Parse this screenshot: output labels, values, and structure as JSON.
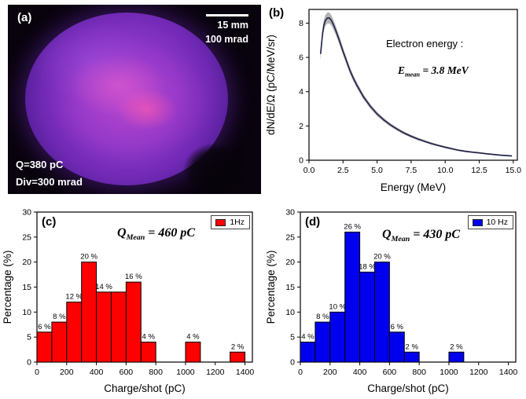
{
  "panels": {
    "a": {
      "label": "(a)",
      "scale_length_label": "15 mm",
      "scale_div_label": "100 mrad",
      "charge_label": "Q=380 pC",
      "divergence_label": "Div=300 mrad"
    },
    "b": {
      "label": "(b)",
      "annotation_title": "Electron energy :",
      "emean_symbol": "E",
      "emean_subscript": "mean",
      "emean_value": " = 3.8 MeV"
    },
    "c": {
      "label": "(c)",
      "legend_label": "1Hz",
      "qmean_symbol": "Q",
      "qmean_subscript": "Mean",
      "qmean_value": " = 460 pC"
    },
    "d": {
      "label": "(d)",
      "legend_label": "10 Hz",
      "qmean_symbol": "Q",
      "qmean_subscript": "Mean",
      "qmean_value": " = 430 pC"
    }
  },
  "chart_data": [
    {
      "type": "line",
      "panel": "b",
      "title": "",
      "xlabel": "Energy (MeV)",
      "ylabel": "dN/dE/Ω (pC/MeV/sr)",
      "xlim": [
        0,
        15.3
      ],
      "ylim": [
        0,
        8.8
      ],
      "xticks": [
        0,
        2.5,
        5,
        7.5,
        10,
        12.5,
        15
      ],
      "xtick_labels": [
        "0.0",
        "2.5",
        "5.0",
        "7.5",
        "10.0",
        "12.5",
        "15.0"
      ],
      "yticks": [
        0,
        2,
        4,
        6,
        8
      ],
      "ytick_labels": [
        "0",
        "2",
        "4",
        "6",
        "8"
      ],
      "line_color": "#20204a",
      "band_color": "#9a9a9a",
      "mean_energy_MeV": 3.8,
      "x": [
        0.85,
        1.0,
        1.1,
        1.2,
        1.35,
        1.5,
        1.65,
        1.8,
        2.0,
        2.25,
        2.5,
        2.75,
        3.0,
        3.25,
        3.5,
        4.0,
        4.5,
        5.0,
        5.5,
        6.0,
        6.5,
        7.0,
        7.5,
        8.0,
        8.5,
        9.0,
        9.5,
        10.0,
        10.5,
        11.0,
        11.5,
        12.0,
        12.5,
        13.0,
        13.5,
        14.0,
        14.5,
        14.9
      ],
      "y": [
        6.2,
        7.4,
        7.9,
        8.15,
        8.3,
        8.3,
        8.15,
        7.9,
        7.5,
        6.95,
        6.35,
        5.8,
        5.25,
        4.8,
        4.4,
        3.7,
        3.15,
        2.7,
        2.35,
        2.05,
        1.8,
        1.58,
        1.4,
        1.24,
        1.1,
        0.97,
        0.86,
        0.76,
        0.67,
        0.58,
        0.52,
        0.47,
        0.43,
        0.38,
        0.34,
        0.3,
        0.27,
        0.25
      ],
      "yerr": [
        0.35,
        0.33,
        0.32,
        0.32,
        0.32,
        0.32,
        0.3,
        0.28,
        0.26,
        0.24,
        0.22,
        0.2,
        0.19,
        0.18,
        0.17,
        0.15,
        0.13,
        0.12,
        0.11,
        0.1,
        0.09,
        0.09,
        0.08,
        0.08,
        0.07,
        0.07,
        0.06,
        0.06,
        0.06,
        0.05,
        0.05,
        0.05,
        0.05,
        0.04,
        0.04,
        0.04,
        0.04,
        0.04
      ]
    },
    {
      "type": "bar",
      "panel": "c",
      "legend": "1Hz",
      "color": "#ff0000",
      "xlabel": "Charge/shot (pC)",
      "ylabel": "Percentage (%)",
      "xlim": [
        0,
        1450
      ],
      "ylim": [
        0,
        30
      ],
      "xticks": [
        0,
        200,
        400,
        600,
        800,
        1000,
        1200,
        1400
      ],
      "xtick_labels": [
        "0",
        "200",
        "400",
        "600",
        "800",
        "1000",
        "1200",
        "1400"
      ],
      "yticks": [
        0,
        5,
        10,
        15,
        20,
        25,
        30
      ],
      "ytick_labels": [
        "0",
        "5",
        "10",
        "15",
        "20",
        "25",
        "30"
      ],
      "bin_width": 100,
      "bins": [
        0,
        100,
        200,
        300,
        400,
        500,
        600,
        700,
        1000,
        1300
      ],
      "values": [
        6,
        8,
        12,
        20,
        14,
        14,
        16,
        4,
        4,
        2
      ],
      "bar_labels": [
        "6 %",
        "8 %",
        "12 %",
        "20 %",
        "14 %",
        "",
        "16 %",
        "4 %",
        "4 %",
        "2 %"
      ],
      "mean_charge_pC": 460
    },
    {
      "type": "bar",
      "panel": "d",
      "legend": "10 Hz",
      "color": "#0000ee",
      "xlabel": "Charge/shot (pC)",
      "ylabel": "Percentage (%)",
      "xlim": [
        0,
        1450
      ],
      "ylim": [
        0,
        30
      ],
      "xticks": [
        0,
        200,
        400,
        600,
        800,
        1000,
        1200,
        1400
      ],
      "xtick_labels": [
        "0",
        "200",
        "400",
        "600",
        "800",
        "1000",
        "1200",
        "1400"
      ],
      "yticks": [
        0,
        5,
        10,
        15,
        20,
        25,
        30
      ],
      "ytick_labels": [
        "0",
        "5",
        "10",
        "15",
        "20",
        "25",
        "30"
      ],
      "bin_width": 100,
      "bins": [
        0,
        100,
        200,
        300,
        400,
        500,
        600,
        700,
        1000
      ],
      "values": [
        4,
        8,
        10,
        26,
        18,
        20,
        6,
        2,
        2
      ],
      "bar_labels": [
        "4 %",
        "8 %",
        "10 %",
        "26 %",
        "18 %",
        "20 %",
        "6 %",
        "2 %",
        "2 %"
      ],
      "mean_charge_pC": 430
    }
  ]
}
